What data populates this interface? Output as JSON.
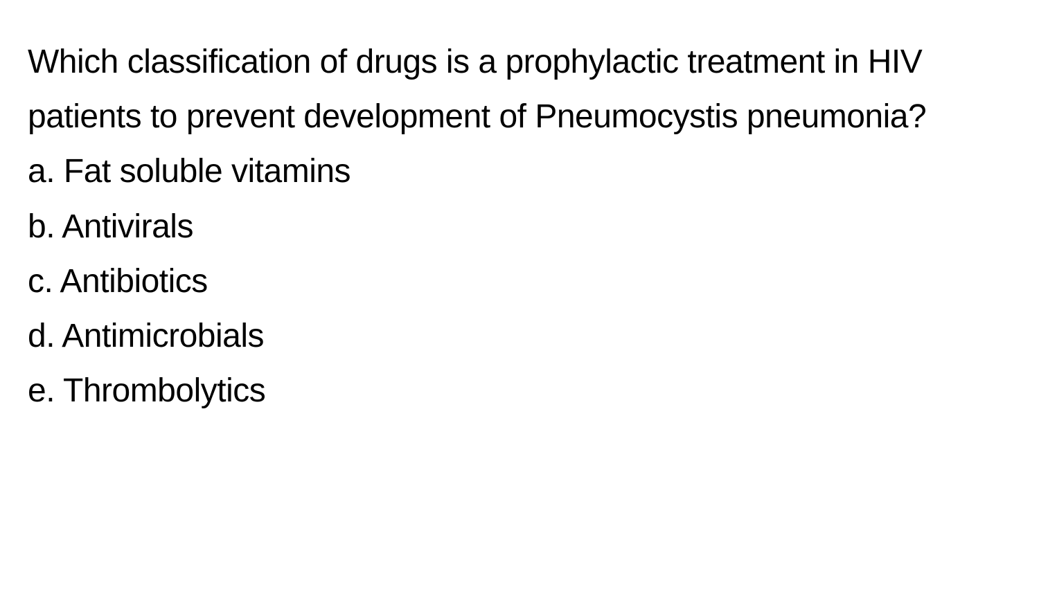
{
  "question": {
    "text": "Which classification of drugs is a prophylactic treatment in HIV patients to prevent development of Pneumocystis pneumonia?",
    "font_size": 48,
    "color": "#000000",
    "background_color": "#ffffff"
  },
  "options": [
    {
      "label": "a.",
      "text": "Fat soluble vitamins"
    },
    {
      "label": "b.",
      "text": "Antivirals"
    },
    {
      "label": "c.",
      "text": "Antibiotics"
    },
    {
      "label": "d.",
      "text": "Antimicrobials"
    },
    {
      "label": "e.",
      "text": "Thrombolytics"
    }
  ]
}
